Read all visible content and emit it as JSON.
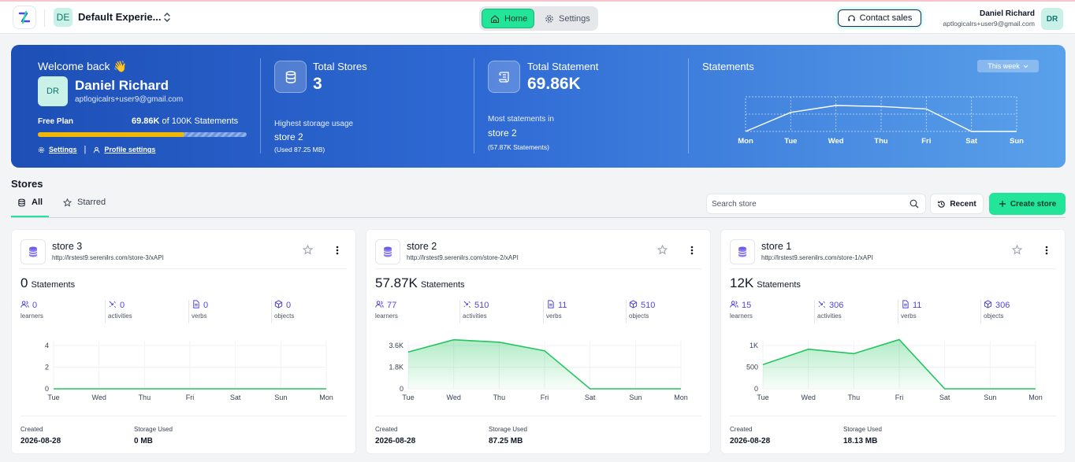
{
  "header": {
    "workspace_initials": "DE",
    "workspace_name": "Default Experie...",
    "nav_home": "Home",
    "nav_settings": "Settings",
    "contact_sales": "Contact sales",
    "user_name": "Daniel Richard",
    "user_email": "aptlogicalrs+user9@gmail.com",
    "user_initials": "DR"
  },
  "banner": {
    "welcome": "Welcome back 👋",
    "initials": "DR",
    "name": "Daniel Richard",
    "email": "aptlogicalrs+user9@gmail.com",
    "plan": "Free Plan",
    "usage_value": "69.86K",
    "usage_suffix": " of 100K Statements",
    "usage_fraction": 0.6986,
    "settings_link": "Settings",
    "profile_link": "Profile settings",
    "total_stores_label": "Total Stores",
    "total_stores_value": "3",
    "highest_storage_label": "Highest storage usage",
    "highest_storage_store": "store 2",
    "highest_storage_used": "(Used 87.25 MB)",
    "total_statement_label": "Total Statement",
    "total_statement_value": "69.86K",
    "most_statements_label": "Most statements in",
    "most_statements_store": "store 2",
    "most_statements_count": "(57.87K Statements)",
    "statements_title": "Statements",
    "range_select": "This week",
    "chart_data": {
      "type": "line",
      "categories": [
        "Mon",
        "Tue",
        "Wed",
        "Thu",
        "Fri",
        "Sat",
        "Sun"
      ],
      "series": [
        {
          "values": [
            0,
            0.55,
            0.75,
            0.72,
            0.65,
            0,
            0
          ]
        }
      ],
      "ylim": [
        0,
        1
      ],
      "grid": true
    }
  },
  "stores": {
    "title": "Stores",
    "tab_all": "All",
    "tab_starred": "Starred",
    "search_placeholder": "Search store",
    "recent": "Recent",
    "create": "Create store",
    "statements_word": "Statements",
    "metric_labels": [
      "learners",
      "activities",
      "verbs",
      "objects"
    ],
    "created_label": "Created",
    "storage_label": "Storage Used",
    "cards": [
      {
        "name": "store 3",
        "url": "http://lrstest9.serenilrs.com/store-3/xAPI",
        "statements": "0",
        "learners": "0",
        "activities": "0",
        "verbs": "0",
        "objects": "0",
        "created": "2026-08-28",
        "storage": "0 MB",
        "chart_data": {
          "type": "area",
          "categories": [
            "Tue",
            "Wed",
            "Thu",
            "Fri",
            "Sat",
            "Sun",
            "Mon"
          ],
          "values": [
            0,
            0,
            0,
            0,
            0,
            0,
            0
          ],
          "yticks": [
            "0",
            "2",
            "4"
          ],
          "ylim": [
            0,
            4
          ]
        }
      },
      {
        "name": "store 2",
        "url": "http://lrstest9.serenilrs.com/store-2/xAPI",
        "statements": "57.87K",
        "learners": "77",
        "activities": "510",
        "verbs": "11",
        "objects": "510",
        "created": "2026-08-28",
        "storage": "87.25 MB",
        "chart_data": {
          "type": "area",
          "categories": [
            "Tue",
            "Wed",
            "Thu",
            "Fri",
            "Sat",
            "Sun",
            "Mon"
          ],
          "values": [
            3000,
            4000,
            3800,
            3100,
            0,
            0,
            0
          ],
          "yticks": [
            "0",
            "1.8K",
            "3.6K"
          ],
          "ylim": [
            0,
            4300
          ]
        }
      },
      {
        "name": "store 1",
        "url": "http://lrstest9.serenilrs.com/store-1/xAPI",
        "statements": "12K",
        "learners": "15",
        "activities": "306",
        "verbs": "11",
        "objects": "306",
        "created": "2026-08-28",
        "storage": "18.13 MB",
        "chart_data": {
          "type": "area",
          "categories": [
            "Tue",
            "Wed",
            "Thu",
            "Fri",
            "Sat",
            "Sun",
            "Mon"
          ],
          "values": [
            550,
            900,
            800,
            1120,
            0,
            0,
            0
          ],
          "yticks": [
            "0",
            "500",
            "1K"
          ],
          "ylim": [
            0,
            1200
          ]
        }
      }
    ]
  }
}
